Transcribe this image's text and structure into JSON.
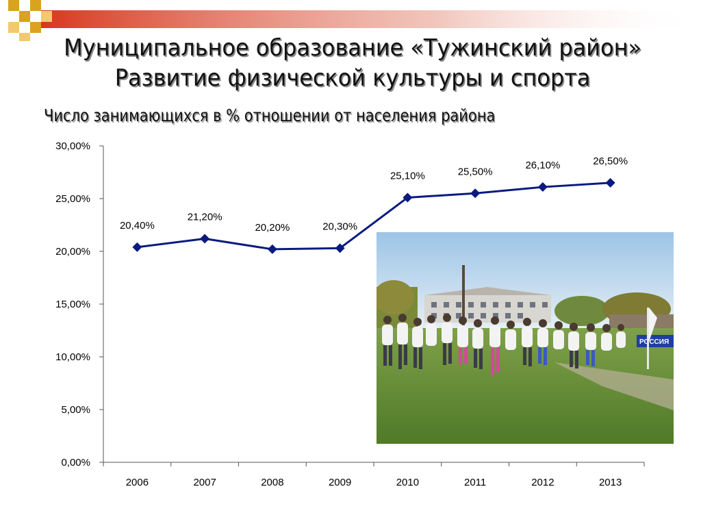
{
  "slide": {
    "title_line1": "Муниципальное образование «Тужинский район»",
    "title_line2": "Развитие физической культуры и спорта",
    "subtitle": "Число занимающихся в % отношении от населения района",
    "accent_color": "#d9371f",
    "square_color": "#d9a21f"
  },
  "photo": {
    "label": "РОССИЯ"
  },
  "chart_data": {
    "type": "line",
    "title": "",
    "xlabel": "",
    "ylabel": "",
    "categories": [
      "2006",
      "2007",
      "2008",
      "2009",
      "2010",
      "2011",
      "2012",
      "2013"
    ],
    "values": [
      20.4,
      21.2,
      20.2,
      20.3,
      25.1,
      25.5,
      26.1,
      26.5
    ],
    "data_labels": [
      "20,40%",
      "21,20%",
      "20,20%",
      "20,30%",
      "25,10%",
      "25,50%",
      "26,10%",
      "26,50%"
    ],
    "ylim": [
      0,
      30
    ],
    "yticks": [
      0,
      5,
      10,
      15,
      20,
      25,
      30
    ],
    "ytick_labels": [
      "0,00%",
      "5,00%",
      "10,00%",
      "15,00%",
      "20,00%",
      "25,00%",
      "30,00%"
    ],
    "grid": false,
    "legend": false,
    "line_color": "#0a1a80"
  }
}
